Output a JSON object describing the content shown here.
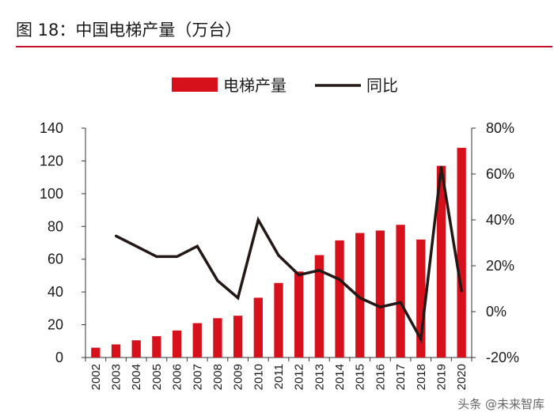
{
  "header": {
    "title": "图 18：中国电梯产量（万台）"
  },
  "watermark": {
    "text": "头条 @未来智库"
  },
  "colors": {
    "bar": "#d7111c",
    "line": "#231815",
    "rule": "#c8102e"
  },
  "chart_data": {
    "type": "bar",
    "title": "图 18：中国电梯产量（万台）",
    "categories": [
      "2002",
      "2003",
      "2004",
      "2005",
      "2006",
      "2007",
      "2008",
      "2009",
      "2010",
      "2011",
      "2012",
      "2013",
      "2014",
      "2015",
      "2016",
      "2017",
      "2018",
      "2019",
      "2020"
    ],
    "series": [
      {
        "name": "电梯产量",
        "type": "bar",
        "axis": "left",
        "values": [
          6,
          8,
          10.5,
          13,
          16.5,
          21,
          24,
          25.5,
          36.5,
          45.5,
          52.5,
          62.5,
          71.5,
          76,
          77.5,
          81,
          72,
          117,
          128
        ]
      },
      {
        "name": "同比",
        "type": "line",
        "axis": "right",
        "unit": "%",
        "values": [
          null,
          33,
          28.5,
          24,
          24,
          28.5,
          13.5,
          6,
          40,
          24.5,
          16,
          18,
          14,
          6,
          2,
          4,
          -12,
          63,
          9
        ]
      }
    ],
    "y_left": {
      "min": 0,
      "max": 140,
      "ticks": [
        "0",
        "20",
        "40",
        "60",
        "80",
        "100",
        "120",
        "140"
      ]
    },
    "y_right": {
      "min": -20,
      "max": 80,
      "ticks": [
        "-20%",
        "0%",
        "20%",
        "40%",
        "60%",
        "80%"
      ]
    },
    "legend": [
      "电梯产量",
      "同比"
    ],
    "legend_position": "top-center",
    "grid": false
  }
}
